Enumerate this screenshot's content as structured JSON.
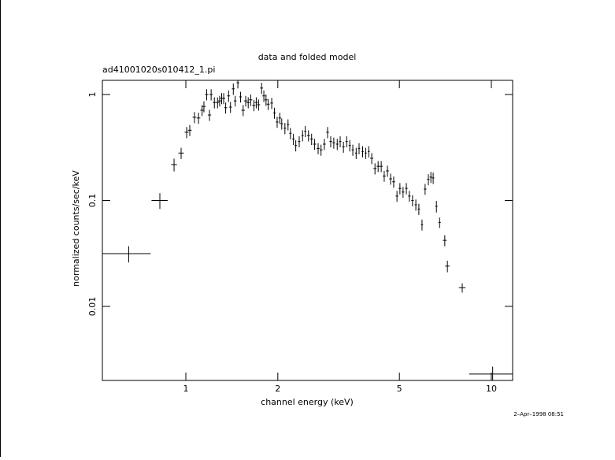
{
  "chart_data": {
    "type": "errorbar",
    "title": "data and folded model",
    "subtitle": "ad41001020s010412_1.pi",
    "x_label": "channel energy (keV)",
    "y_label": "normalized counts/sec/keV",
    "timestamp": "2–Apr–1998 08:51",
    "x_scale": "log",
    "y_scale": "log",
    "xlim": [
      0.533,
      11.74
    ],
    "ylim": [
      0.002,
      1.36
    ],
    "xticks": [
      1,
      2,
      5,
      10
    ],
    "yticks": [
      0.01,
      0.1,
      1
    ],
    "color": "#000000",
    "x": [
      0.65,
      0.822,
      0.915,
      0.965,
      1.006,
      1.03,
      1.067,
      1.1,
      1.13,
      1.146,
      1.17,
      1.195,
      1.21,
      1.24,
      1.27,
      1.29,
      1.31,
      1.33,
      1.35,
      1.38,
      1.4,
      1.43,
      1.45,
      1.48,
      1.51,
      1.54,
      1.57,
      1.6,
      1.63,
      1.67,
      1.7,
      1.73,
      1.77,
      1.8,
      1.83,
      1.86,
      1.91,
      1.95,
      1.99,
      2.03,
      2.06,
      2.11,
      2.16,
      2.2,
      2.25,
      2.29,
      2.35,
      2.41,
      2.46,
      2.52,
      2.58,
      2.64,
      2.71,
      2.77,
      2.84,
      2.91,
      2.98,
      3.05,
      3.13,
      3.2,
      3.28,
      3.36,
      3.44,
      3.52,
      3.61,
      3.69,
      3.79,
      3.88,
      3.97,
      4.06,
      4.16,
      4.26,
      4.36,
      4.46,
      4.57,
      4.68,
      4.79,
      4.91,
      5.02,
      5.14,
      5.27,
      5.39,
      5.52,
      5.66,
      5.79,
      5.93,
      6.07,
      6.22,
      6.34,
      6.45,
      6.61,
      6.77,
      7.04,
      7.18,
      8.03,
      10.1
    ],
    "values": [
      0.0315,
      0.1,
      0.218,
      0.28,
      0.44,
      0.46,
      0.61,
      0.6,
      0.71,
      0.77,
      1.0,
      0.64,
      1.0,
      0.84,
      0.84,
      0.87,
      0.92,
      0.92,
      0.75,
      0.97,
      0.76,
      1.13,
      0.87,
      1.29,
      0.95,
      0.71,
      0.87,
      0.84,
      0.89,
      0.79,
      0.84,
      0.8,
      1.15,
      0.97,
      0.89,
      0.81,
      0.83,
      0.67,
      0.55,
      0.6,
      0.53,
      0.48,
      0.52,
      0.43,
      0.38,
      0.33,
      0.36,
      0.41,
      0.45,
      0.41,
      0.38,
      0.34,
      0.31,
      0.3,
      0.34,
      0.44,
      0.36,
      0.35,
      0.34,
      0.36,
      0.32,
      0.36,
      0.33,
      0.3,
      0.28,
      0.31,
      0.29,
      0.28,
      0.29,
      0.25,
      0.2,
      0.21,
      0.21,
      0.17,
      0.19,
      0.16,
      0.15,
      0.11,
      0.13,
      0.12,
      0.13,
      0.11,
      0.1,
      0.091,
      0.083,
      0.059,
      0.128,
      0.158,
      0.166,
      0.163,
      0.088,
      0.062,
      0.042,
      0.024,
      0.015,
      0.0023
    ],
    "xerr": [
      0.117,
      0.05,
      0.02,
      0.02,
      0.015,
      0.015,
      0.015,
      0.015,
      0.015,
      0.015,
      0.015,
      0.015,
      0.015,
      0.015,
      0.015,
      0.015,
      0.015,
      0.015,
      0.015,
      0.015,
      0.015,
      0.015,
      0.015,
      0.015,
      0.015,
      0.02,
      0.02,
      0.02,
      0.02,
      0.02,
      0.02,
      0.02,
      0.02,
      0.02,
      0.02,
      0.02,
      0.02,
      0.02,
      0.02,
      0.02,
      0.02,
      0.02,
      0.02,
      0.02,
      0.02,
      0.02,
      0.02,
      0.02,
      0.02,
      0.03,
      0.03,
      0.03,
      0.03,
      0.03,
      0.03,
      0.03,
      0.03,
      0.03,
      0.03,
      0.03,
      0.03,
      0.03,
      0.03,
      0.03,
      0.03,
      0.03,
      0.03,
      0.03,
      0.03,
      0.05,
      0.05,
      0.05,
      0.05,
      0.05,
      0.05,
      0.05,
      0.05,
      0.05,
      0.05,
      0.05,
      0.05,
      0.05,
      0.05,
      0.05,
      0.05,
      0.05,
      0.06,
      0.06,
      0.06,
      0.06,
      0.06,
      0.06,
      0.1,
      0.12,
      0.2,
      1.64
    ],
    "yerr": [
      0.0055,
      0.017,
      0.03,
      0.034,
      0.053,
      0.055,
      0.073,
      0.072,
      0.085,
      0.092,
      0.12,
      0.077,
      0.12,
      0.1,
      0.1,
      0.1,
      0.11,
      0.11,
      0.09,
      0.12,
      0.09,
      0.14,
      0.1,
      0.15,
      0.11,
      0.085,
      0.1,
      0.1,
      0.11,
      0.095,
      0.1,
      0.096,
      0.14,
      0.12,
      0.11,
      0.097,
      0.1,
      0.08,
      0.066,
      0.072,
      0.064,
      0.058,
      0.062,
      0.052,
      0.046,
      0.04,
      0.043,
      0.049,
      0.054,
      0.049,
      0.046,
      0.041,
      0.037,
      0.036,
      0.041,
      0.053,
      0.043,
      0.042,
      0.041,
      0.043,
      0.038,
      0.043,
      0.04,
      0.036,
      0.034,
      0.037,
      0.035,
      0.034,
      0.035,
      0.03,
      0.024,
      0.025,
      0.025,
      0.02,
      0.023,
      0.019,
      0.018,
      0.013,
      0.016,
      0.014,
      0.016,
      0.013,
      0.012,
      0.011,
      0.01,
      0.007,
      0.015,
      0.019,
      0.02,
      0.02,
      0.011,
      0.007,
      0.005,
      0.003,
      0.0015,
      0.0004
    ]
  }
}
